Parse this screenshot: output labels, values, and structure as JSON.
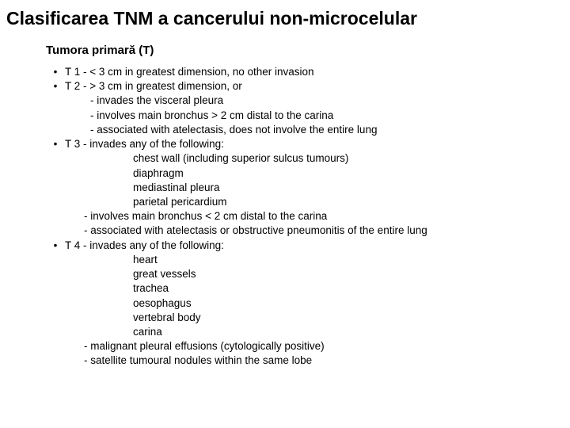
{
  "title": "Clasificarea TNM a cancerului non-microcelular",
  "subtitle": "Tumora primară (T)",
  "lines": {
    "t1": "T 1 - < 3 cm in greatest dimension, no other invasion",
    "t2": "T 2 - > 3 cm in greatest dimension, or",
    "t2a": "- invades the visceral pleura",
    "t2b": "- involves main bronchus > 2 cm distal to the carina",
    "t2c": "- associated with atelectasis, does not involve the entire lung",
    "t3": "T 3 - invades any of the following:",
    "t3a": "chest wall (including superior sulcus tumours)",
    "t3b": "diaphragm",
    "t3c": "mediastinal pleura",
    "t3d": "parietal pericardium",
    "t3e": "- involves main bronchus < 2 cm distal to the carina",
    "t3f": "- associated with atelectasis or obstructive pneumonitis of the entire lung",
    "t4": "T 4 - invades any of the following:",
    "t4a": "heart",
    "t4b": "great vessels",
    "t4c": "trachea",
    "t4d": "oesophagus",
    "t4e": "vertebral body",
    "t4f": "carina",
    "t4g": "- malignant pleural effusions (cytologically positive)",
    "t4h": "- satellite tumoural nodules within the same lobe"
  },
  "bullet": "•"
}
